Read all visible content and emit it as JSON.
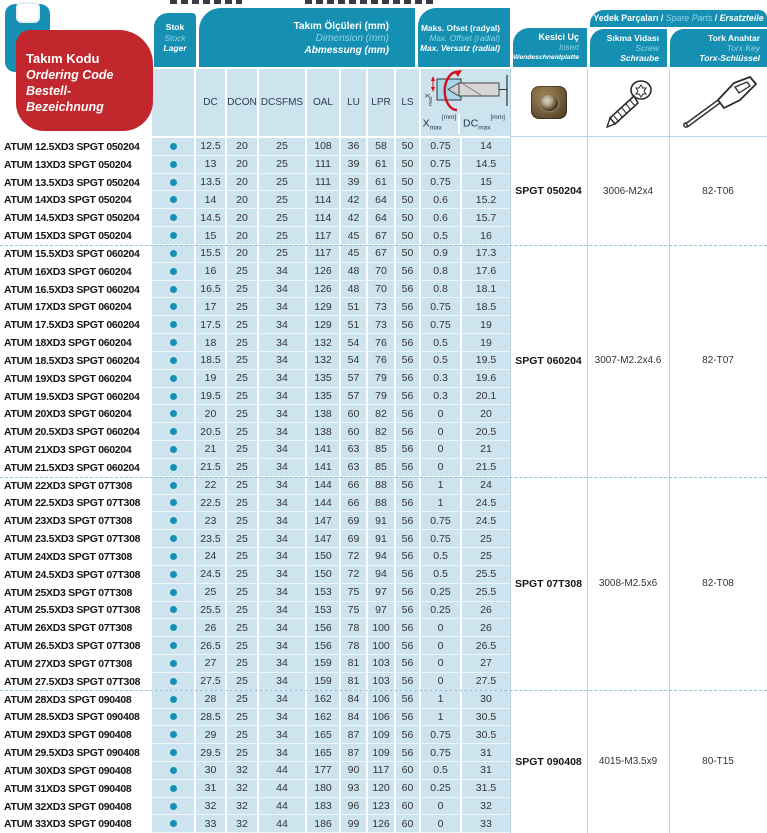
{
  "header": {
    "code_block": {
      "tr": "Takım Kodu",
      "en": "Ordering Code",
      "de": "Bestell-Bezeichnung"
    },
    "stock": {
      "tr": "Stok",
      "en": "Stock",
      "de": "Lager"
    },
    "dimensions": {
      "tr": "Takım Ölçüleri (mm)",
      "en": "Dimension (mm)",
      "de": "Abmessung (mm)"
    },
    "offset": {
      "tr": "Maks. Ofset (radyal)",
      "en": "Max. Offset (radial)",
      "de": "Max. Versatz (radial)"
    },
    "insert": {
      "tr": "Kesici Uç",
      "en": "Insert",
      "de": "Wendeschneidplatte"
    },
    "spare_parts": {
      "tr": "Yedek Parçaları",
      "sep1": " / ",
      "en": "Spare Parts",
      "sep2": " / ",
      "de": "Ersatzteile"
    },
    "screw": {
      "tr": "Sıkma Vidası",
      "en": "Screw",
      "de": "Schraube"
    },
    "torx": {
      "tr": "Tork Anahtar",
      "en": "Torx Key",
      "de": "Torx-Schlüssel"
    }
  },
  "columns": {
    "dc": "DC",
    "dcon": "DCON",
    "dcsfms": "DCSFMS",
    "oal": "OAL",
    "lu": "LU",
    "lpr": "LPR",
    "ls": "LS"
  },
  "offset_labels": {
    "x_base": "X",
    "dc_base": "DC",
    "sub": "max",
    "unit": "[mm]"
  },
  "colors": {
    "teal": "#1690b2",
    "light_blue": "#cde4ef",
    "red": "#c1272d",
    "stock_dot": "#1690b2",
    "dashed_separator": "#8fc5da"
  },
  "table": {
    "rows": [
      {
        "code": "ATUM 12.5XD3 SPGT 050204",
        "stock": true,
        "dc": "12.5",
        "dcon": "20",
        "dcsfms": "25",
        "oal": "108",
        "lu": "36",
        "lpr": "58",
        "ls": "50",
        "xmax": "0.75",
        "dcmax": "14"
      },
      {
        "code": "ATUM 13XD3 SPGT 050204",
        "stock": true,
        "dc": "13",
        "dcon": "20",
        "dcsfms": "25",
        "oal": "111",
        "lu": "39",
        "lpr": "61",
        "ls": "50",
        "xmax": "0.75",
        "dcmax": "14.5"
      },
      {
        "code": "ATUM 13.5XD3 SPGT 050204",
        "stock": true,
        "dc": "13.5",
        "dcon": "20",
        "dcsfms": "25",
        "oal": "111",
        "lu": "39",
        "lpr": "61",
        "ls": "50",
        "xmax": "0.75",
        "dcmax": "15"
      },
      {
        "code": "ATUM 14XD3 SPGT 050204",
        "stock": true,
        "dc": "14",
        "dcon": "20",
        "dcsfms": "25",
        "oal": "114",
        "lu": "42",
        "lpr": "64",
        "ls": "50",
        "xmax": "0.6",
        "dcmax": "15.2"
      },
      {
        "code": "ATUM 14.5XD3 SPGT 050204",
        "stock": true,
        "dc": "14.5",
        "dcon": "20",
        "dcsfms": "25",
        "oal": "114",
        "lu": "42",
        "lpr": "64",
        "ls": "50",
        "xmax": "0.6",
        "dcmax": "15.7"
      },
      {
        "code": "ATUM 15XD3 SPGT 050204",
        "stock": true,
        "dc": "15",
        "dcon": "20",
        "dcsfms": "25",
        "oal": "117",
        "lu": "45",
        "lpr": "67",
        "ls": "50",
        "xmax": "0.5",
        "dcmax": "16"
      },
      {
        "code": "ATUM 15.5XD3 SPGT 060204",
        "stock": true,
        "dc": "15.5",
        "dcon": "20",
        "dcsfms": "25",
        "oal": "117",
        "lu": "45",
        "lpr": "67",
        "ls": "50",
        "xmax": "0.9",
        "dcmax": "17.3"
      },
      {
        "code": "ATUM 16XD3 SPGT 060204",
        "stock": true,
        "dc": "16",
        "dcon": "25",
        "dcsfms": "34",
        "oal": "126",
        "lu": "48",
        "lpr": "70",
        "ls": "56",
        "xmax": "0.8",
        "dcmax": "17.6"
      },
      {
        "code": "ATUM 16.5XD3 SPGT 060204",
        "stock": true,
        "dc": "16.5",
        "dcon": "25",
        "dcsfms": "34",
        "oal": "126",
        "lu": "48",
        "lpr": "70",
        "ls": "56",
        "xmax": "0.8",
        "dcmax": "18.1"
      },
      {
        "code": "ATUM 17XD3 SPGT 060204",
        "stock": true,
        "dc": "17",
        "dcon": "25",
        "dcsfms": "34",
        "oal": "129",
        "lu": "51",
        "lpr": "73",
        "ls": "56",
        "xmax": "0.75",
        "dcmax": "18.5"
      },
      {
        "code": "ATUM 17.5XD3 SPGT 060204",
        "stock": true,
        "dc": "17.5",
        "dcon": "25",
        "dcsfms": "34",
        "oal": "129",
        "lu": "51",
        "lpr": "73",
        "ls": "56",
        "xmax": "0.75",
        "dcmax": "19"
      },
      {
        "code": "ATUM 18XD3 SPGT 060204",
        "stock": true,
        "dc": "18",
        "dcon": "25",
        "dcsfms": "34",
        "oal": "132",
        "lu": "54",
        "lpr": "76",
        "ls": "56",
        "xmax": "0.5",
        "dcmax": "19"
      },
      {
        "code": "ATUM 18.5XD3 SPGT 060204",
        "stock": true,
        "dc": "18.5",
        "dcon": "25",
        "dcsfms": "34",
        "oal": "132",
        "lu": "54",
        "lpr": "76",
        "ls": "56",
        "xmax": "0.5",
        "dcmax": "19.5"
      },
      {
        "code": "ATUM 19XD3 SPGT 060204",
        "stock": true,
        "dc": "19",
        "dcon": "25",
        "dcsfms": "34",
        "oal": "135",
        "lu": "57",
        "lpr": "79",
        "ls": "56",
        "xmax": "0.3",
        "dcmax": "19.6"
      },
      {
        "code": "ATUM 19.5XD3 SPGT 060204",
        "stock": true,
        "dc": "19.5",
        "dcon": "25",
        "dcsfms": "34",
        "oal": "135",
        "lu": "57",
        "lpr": "79",
        "ls": "56",
        "xmax": "0.3",
        "dcmax": "20.1"
      },
      {
        "code": "ATUM 20XD3 SPGT 060204",
        "stock": true,
        "dc": "20",
        "dcon": "25",
        "dcsfms": "34",
        "oal": "138",
        "lu": "60",
        "lpr": "82",
        "ls": "56",
        "xmax": "0",
        "dcmax": "20"
      },
      {
        "code": "ATUM 20.5XD3 SPGT 060204",
        "stock": true,
        "dc": "20.5",
        "dcon": "25",
        "dcsfms": "34",
        "oal": "138",
        "lu": "60",
        "lpr": "82",
        "ls": "56",
        "xmax": "0",
        "dcmax": "20.5"
      },
      {
        "code": "ATUM 21XD3 SPGT 060204",
        "stock": true,
        "dc": "21",
        "dcon": "25",
        "dcsfms": "34",
        "oal": "141",
        "lu": "63",
        "lpr": "85",
        "ls": "56",
        "xmax": "0",
        "dcmax": "21"
      },
      {
        "code": "ATUM 21.5XD3 SPGT 060204",
        "stock": true,
        "dc": "21.5",
        "dcon": "25",
        "dcsfms": "34",
        "oal": "141",
        "lu": "63",
        "lpr": "85",
        "ls": "56",
        "xmax": "0",
        "dcmax": "21.5"
      },
      {
        "code": "ATUM 22XD3 SPGT 07T308",
        "stock": true,
        "dc": "22",
        "dcon": "25",
        "dcsfms": "34",
        "oal": "144",
        "lu": "66",
        "lpr": "88",
        "ls": "56",
        "xmax": "1",
        "dcmax": "24"
      },
      {
        "code": "ATUM 22.5XD3 SPGT 07T308",
        "stock": true,
        "dc": "22.5",
        "dcon": "25",
        "dcsfms": "34",
        "oal": "144",
        "lu": "66",
        "lpr": "88",
        "ls": "56",
        "xmax": "1",
        "dcmax": "24.5"
      },
      {
        "code": "ATUM 23XD3 SPGT 07T308",
        "stock": true,
        "dc": "23",
        "dcon": "25",
        "dcsfms": "34",
        "oal": "147",
        "lu": "69",
        "lpr": "91",
        "ls": "56",
        "xmax": "0.75",
        "dcmax": "24.5"
      },
      {
        "code": "ATUM 23.5XD3 SPGT 07T308",
        "stock": true,
        "dc": "23.5",
        "dcon": "25",
        "dcsfms": "34",
        "oal": "147",
        "lu": "69",
        "lpr": "91",
        "ls": "56",
        "xmax": "0.75",
        "dcmax": "25"
      },
      {
        "code": "ATUM 24XD3 SPGT 07T308",
        "stock": true,
        "dc": "24",
        "dcon": "25",
        "dcsfms": "34",
        "oal": "150",
        "lu": "72",
        "lpr": "94",
        "ls": "56",
        "xmax": "0.5",
        "dcmax": "25"
      },
      {
        "code": "ATUM 24.5XD3 SPGT 07T308",
        "stock": true,
        "dc": "24.5",
        "dcon": "25",
        "dcsfms": "34",
        "oal": "150",
        "lu": "72",
        "lpr": "94",
        "ls": "56",
        "xmax": "0.5",
        "dcmax": "25.5"
      },
      {
        "code": "ATUM 25XD3 SPGT 07T308",
        "stock": true,
        "dc": "25",
        "dcon": "25",
        "dcsfms": "34",
        "oal": "153",
        "lu": "75",
        "lpr": "97",
        "ls": "56",
        "xmax": "0.25",
        "dcmax": "25.5"
      },
      {
        "code": "ATUM 25.5XD3 SPGT 07T308",
        "stock": true,
        "dc": "25.5",
        "dcon": "25",
        "dcsfms": "34",
        "oal": "153",
        "lu": "75",
        "lpr": "97",
        "ls": "56",
        "xmax": "0.25",
        "dcmax": "26"
      },
      {
        "code": "ATUM 26XD3 SPGT 07T308",
        "stock": true,
        "dc": "26",
        "dcon": "25",
        "dcsfms": "34",
        "oal": "156",
        "lu": "78",
        "lpr": "100",
        "ls": "56",
        "xmax": "0",
        "dcmax": "26"
      },
      {
        "code": "ATUM 26.5XD3 SPGT 07T308",
        "stock": true,
        "dc": "26.5",
        "dcon": "25",
        "dcsfms": "34",
        "oal": "156",
        "lu": "78",
        "lpr": "100",
        "ls": "56",
        "xmax": "0",
        "dcmax": "26.5"
      },
      {
        "code": "ATUM 27XD3 SPGT 07T308",
        "stock": true,
        "dc": "27",
        "dcon": "25",
        "dcsfms": "34",
        "oal": "159",
        "lu": "81",
        "lpr": "103",
        "ls": "56",
        "xmax": "0",
        "dcmax": "27"
      },
      {
        "code": "ATUM 27.5XD3 SPGT 07T308",
        "stock": true,
        "dc": "27.5",
        "dcon": "25",
        "dcsfms": "34",
        "oal": "159",
        "lu": "81",
        "lpr": "103",
        "ls": "56",
        "xmax": "0",
        "dcmax": "27.5"
      },
      {
        "code": "ATUM 28XD3 SPGT 090408",
        "stock": true,
        "dc": "28",
        "dcon": "25",
        "dcsfms": "34",
        "oal": "162",
        "lu": "84",
        "lpr": "106",
        "ls": "56",
        "xmax": "1",
        "dcmax": "30"
      },
      {
        "code": "ATUM 28.5XD3 SPGT 090408",
        "stock": true,
        "dc": "28.5",
        "dcon": "25",
        "dcsfms": "34",
        "oal": "162",
        "lu": "84",
        "lpr": "106",
        "ls": "56",
        "xmax": "1",
        "dcmax": "30.5"
      },
      {
        "code": "ATUM 29XD3 SPGT 090408",
        "stock": true,
        "dc": "29",
        "dcon": "25",
        "dcsfms": "34",
        "oal": "165",
        "lu": "87",
        "lpr": "109",
        "ls": "56",
        "xmax": "0.75",
        "dcmax": "30.5"
      },
      {
        "code": "ATUM 29.5XD3 SPGT 090408",
        "stock": true,
        "dc": "29.5",
        "dcon": "25",
        "dcsfms": "34",
        "oal": "165",
        "lu": "87",
        "lpr": "109",
        "ls": "56",
        "xmax": "0.75",
        "dcmax": "31"
      },
      {
        "code": "ATUM 30XD3 SPGT 090408",
        "stock": true,
        "dc": "30",
        "dcon": "32",
        "dcsfms": "44",
        "oal": "177",
        "lu": "90",
        "lpr": "117",
        "ls": "60",
        "xmax": "0.5",
        "dcmax": "31"
      },
      {
        "code": "ATUM 31XD3 SPGT 090408",
        "stock": true,
        "dc": "31",
        "dcon": "32",
        "dcsfms": "44",
        "oal": "180",
        "lu": "93",
        "lpr": "120",
        "ls": "60",
        "xmax": "0.25",
        "dcmax": "31.5"
      },
      {
        "code": "ATUM 32XD3 SPGT 090408",
        "stock": true,
        "dc": "32",
        "dcon": "32",
        "dcsfms": "44",
        "oal": "183",
        "lu": "96",
        "lpr": "123",
        "ls": "60",
        "xmax": "0",
        "dcmax": "32"
      },
      {
        "code": "ATUM 33XD3 SPGT 090408",
        "stock": true,
        "dc": "33",
        "dcon": "32",
        "dcsfms": "44",
        "oal": "186",
        "lu": "99",
        "lpr": "126",
        "ls": "60",
        "xmax": "0",
        "dcmax": "33"
      }
    ],
    "groups": [
      {
        "start": 0,
        "end": 5,
        "insert": "SPGT 050204",
        "screw": "3006-M2x4",
        "torx": "82-T06"
      },
      {
        "start": 6,
        "end": 18,
        "insert": "SPGT 060204",
        "screw": "3007-M2.2x4.6",
        "torx": "82-T07"
      },
      {
        "start": 19,
        "end": 30,
        "insert": "SPGT 07T308",
        "screw": "3008-M2.5x6",
        "torx": "82-T08"
      },
      {
        "start": 31,
        "end": 38,
        "insert": "SPGT 090408",
        "screw": "4015-M3.5x9",
        "torx": "80-T15"
      }
    ]
  }
}
